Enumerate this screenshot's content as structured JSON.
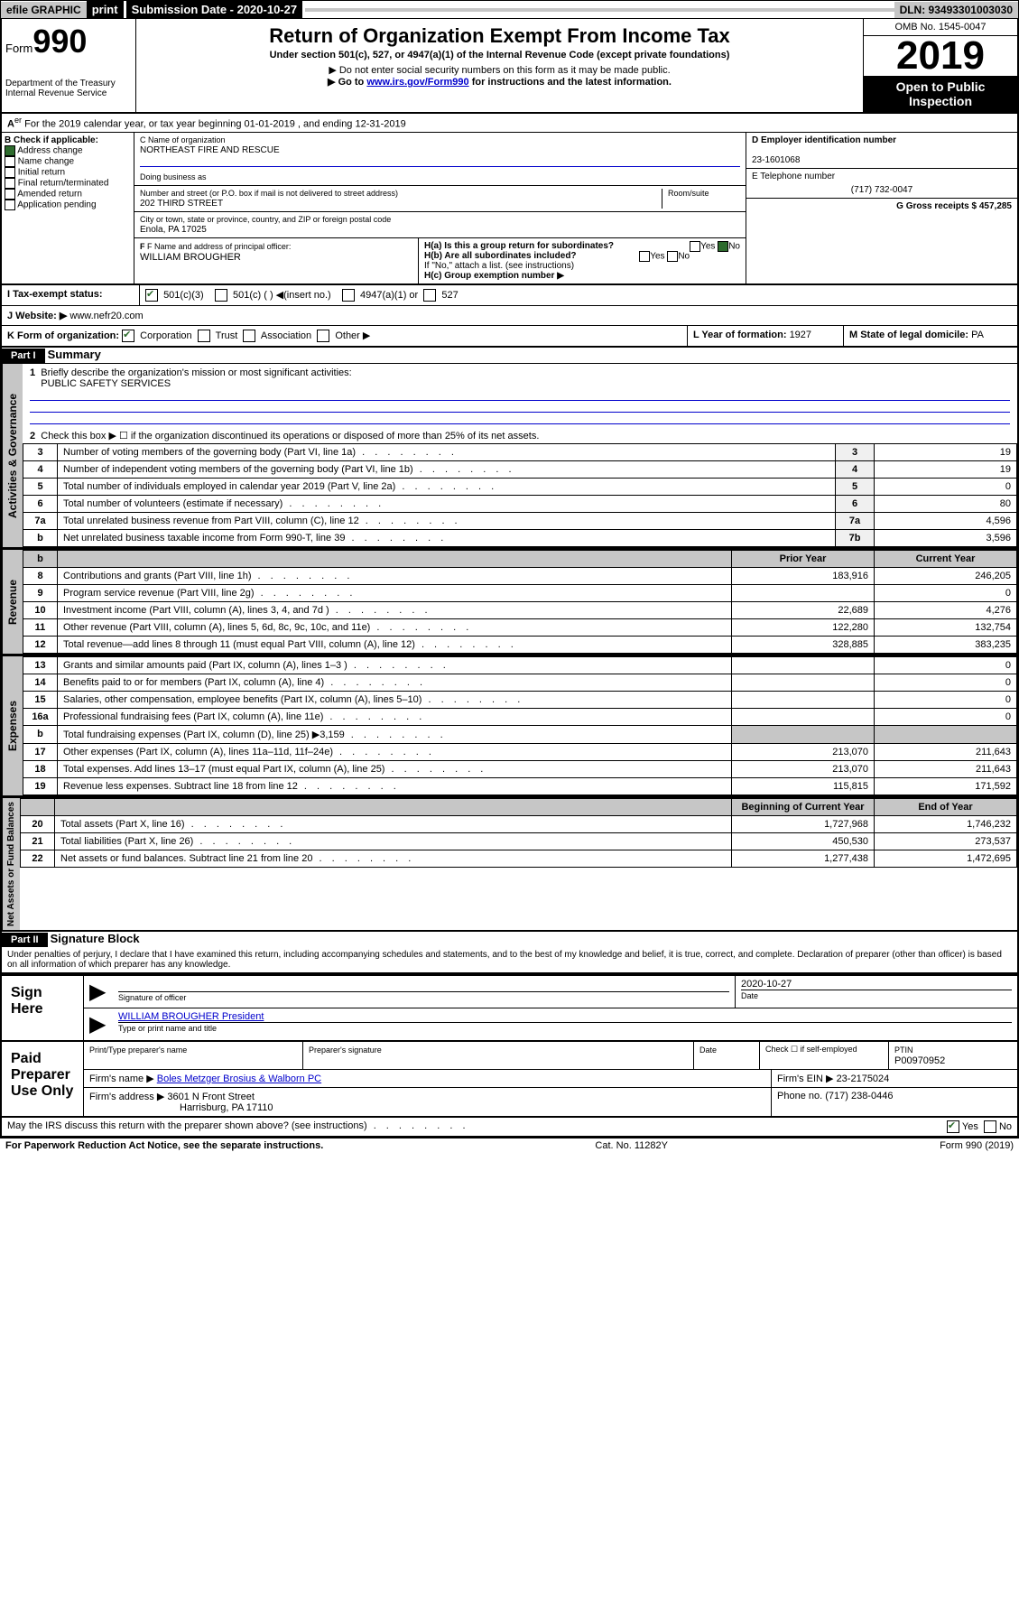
{
  "topbar": {
    "efile": "efile GRAPHIC",
    "print": "print",
    "submission": "Submission Date - 2020-10-27",
    "dln": "DLN: 93493301003030"
  },
  "header": {
    "form_prefix": "Form",
    "form_number": "990",
    "dept": "Department of the Treasury",
    "irs": "Internal Revenue Service",
    "title": "Return of Organization Exempt From Income Tax",
    "subtitle": "Under section 501(c), 527, or 4947(a)(1) of the Internal Revenue Code (except private foundations)",
    "note1": "▶ Do not enter social security numbers on this form as it may be made public.",
    "note2_pre": "▶ Go to ",
    "note2_link": "www.irs.gov/Form990",
    "note2_post": " for instructions and the latest information.",
    "omb": "OMB No. 1545-0047",
    "year": "2019",
    "open": "Open to Public Inspection"
  },
  "period": "For the 2019 calendar year, or tax year beginning 01-01-2019     , and ending 12-31-2019",
  "sectionB": {
    "label": "B Check if applicable:",
    "items": [
      "Address change",
      "Name change",
      "Initial return",
      "Final return/terminated",
      "Amended return",
      "Application pending"
    ]
  },
  "sectionC": {
    "name_label": "C Name of organization",
    "name": "NORTHEAST FIRE AND RESCUE",
    "dba_label": "Doing business as",
    "addr_label": "Number and street (or P.O. box if mail is not delivered to street address)",
    "room_label": "Room/suite",
    "addr": "202 THIRD STREET",
    "city_label": "City or town, state or province, country, and ZIP or foreign postal code",
    "city": "Enola, PA  17025",
    "officer_label": "F  Name and address of principal officer:",
    "officer": "WILLIAM BROUGHER"
  },
  "sectionD": {
    "label": "D Employer identification number",
    "ein": "23-1601068",
    "phone_label": "E Telephone number",
    "phone": "(717) 732-0047",
    "gross_label": "G Gross receipts $ 457,285"
  },
  "sectionH": {
    "a": "H(a)  Is this a group return for subordinates?",
    "b": "H(b)  Are all subordinates included?",
    "b_note": "If \"No,\" attach a list. (see instructions)",
    "c": "H(c)  Group exemption number ▶"
  },
  "rowI": {
    "label": "I     Tax-exempt status:",
    "opts": [
      "501(c)(3)",
      "501(c) (  ) ◀(insert no.)",
      "4947(a)(1) or",
      "527"
    ]
  },
  "rowJ": {
    "label": "J     Website: ▶",
    "url": "www.nefr20.com"
  },
  "rowK": {
    "label": "K Form of organization:",
    "opts": [
      "Corporation",
      "Trust",
      "Association",
      "Other ▶"
    ],
    "l_label": "L Year of formation: ",
    "l_val": "1927",
    "m_label": "M State of legal domicile: ",
    "m_val": "PA"
  },
  "part1": {
    "header": "Part I",
    "title": "Summary",
    "q1": "Briefly describe the organization's mission or most significant activities:",
    "q1_ans": "PUBLIC SAFETY SERVICES",
    "q2": "Check this box ▶ ☐  if the organization discontinued its operations or disposed of more than 25% of its net assets.",
    "rows_simple": [
      {
        "n": "3",
        "label": "Number of voting members of the governing body (Part VI, line 1a)",
        "box": "3",
        "val": "19"
      },
      {
        "n": "4",
        "label": "Number of independent voting members of the governing body (Part VI, line 1b)",
        "box": "4",
        "val": "19"
      },
      {
        "n": "5",
        "label": "Total number of individuals employed in calendar year 2019 (Part V, line 2a)",
        "box": "5",
        "val": "0"
      },
      {
        "n": "6",
        "label": "Total number of volunteers (estimate if necessary)",
        "box": "6",
        "val": "80"
      },
      {
        "n": "7a",
        "label": "Total unrelated business revenue from Part VIII, column (C), line 12",
        "box": "7a",
        "val": "4,596"
      },
      {
        "n": "b",
        "label": "Net unrelated business taxable income from Form 990-T, line 39",
        "box": "7b",
        "val": "3,596"
      }
    ],
    "prior_hdr": "Prior Year",
    "current_hdr": "Current Year",
    "beg_hdr": "Beginning of Current Year",
    "end_hdr": "End of Year",
    "vert_labels": [
      "Activities & Governance",
      "Revenue",
      "Expenses",
      "Net Assets or Fund Balances"
    ],
    "rows_double": [
      {
        "n": "8",
        "label": "Contributions and grants (Part VIII, line 1h)",
        "prior": "183,916",
        "cur": "246,205"
      },
      {
        "n": "9",
        "label": "Program service revenue (Part VIII, line 2g)",
        "prior": "",
        "cur": "0"
      },
      {
        "n": "10",
        "label": "Investment income (Part VIII, column (A), lines 3, 4, and 7d )",
        "prior": "22,689",
        "cur": "4,276"
      },
      {
        "n": "11",
        "label": "Other revenue (Part VIII, column (A), lines 5, 6d, 8c, 9c, 10c, and 11e)",
        "prior": "122,280",
        "cur": "132,754"
      },
      {
        "n": "12",
        "label": "Total revenue—add lines 8 through 11 (must equal Part VIII, column (A), line 12)",
        "prior": "328,885",
        "cur": "383,235"
      }
    ],
    "rows_exp": [
      {
        "n": "13",
        "label": "Grants and similar amounts paid (Part IX, column (A), lines 1–3 )",
        "prior": "",
        "cur": "0"
      },
      {
        "n": "14",
        "label": "Benefits paid to or for members (Part IX, column (A), line 4)",
        "prior": "",
        "cur": "0"
      },
      {
        "n": "15",
        "label": "Salaries, other compensation, employee benefits (Part IX, column (A), lines 5–10)",
        "prior": "",
        "cur": "0"
      },
      {
        "n": "16a",
        "label": "Professional fundraising fees (Part IX, column (A), line 11e)",
        "prior": "",
        "cur": "0"
      },
      {
        "n": "b",
        "label": "Total fundraising expenses (Part IX, column (D), line 25) ▶3,159",
        "prior": "shade",
        "cur": "shade"
      },
      {
        "n": "17",
        "label": "Other expenses (Part IX, column (A), lines 11a–11d, 11f–24e)",
        "prior": "213,070",
        "cur": "211,643"
      },
      {
        "n": "18",
        "label": "Total expenses. Add lines 13–17 (must equal Part IX, column (A), line 25)",
        "prior": "213,070",
        "cur": "211,643"
      },
      {
        "n": "19",
        "label": "Revenue less expenses. Subtract line 18 from line 12",
        "prior": "115,815",
        "cur": "171,592"
      }
    ],
    "rows_net": [
      {
        "n": "20",
        "label": "Total assets (Part X, line 16)",
        "prior": "1,727,968",
        "cur": "1,746,232"
      },
      {
        "n": "21",
        "label": "Total liabilities (Part X, line 26)",
        "prior": "450,530",
        "cur": "273,537"
      },
      {
        "n": "22",
        "label": "Net assets or fund balances. Subtract line 21 from line 20",
        "prior": "1,277,438",
        "cur": "1,472,695"
      }
    ]
  },
  "part2": {
    "header": "Part II",
    "title": "Signature Block",
    "declaration": "Under penalties of perjury, I declare that I have examined this return, including accompanying schedules and statements, and to the best of my knowledge and belief, it is true, correct, and complete. Declaration of preparer (other than officer) is based on all information of which preparer has any knowledge.",
    "sign_here": "Sign Here",
    "sig_officer": "Signature of officer",
    "sig_date": "2020-10-27",
    "date_label": "Date",
    "officer_name": "WILLIAM BROUGHER  President",
    "type_name": "Type or print name and title",
    "paid_prep": "Paid Preparer Use Only",
    "prep_name_label": "Print/Type preparer's name",
    "prep_sig_label": "Preparer's signature",
    "check_self": "Check ☐ if self-employed",
    "ptin_label": "PTIN",
    "ptin": "P00970952",
    "firm_name_label": "Firm's name    ▶",
    "firm_name": "Boles Metzger Brosius & Walborn PC",
    "firm_ein_label": "Firm's EIN ▶",
    "firm_ein": "23-2175024",
    "firm_addr_label": "Firm's address ▶",
    "firm_addr1": "3601 N Front Street",
    "firm_addr2": "Harrisburg, PA  17110",
    "phone_label": "Phone no.",
    "phone": "(717) 238-0446",
    "discuss": "May the IRS discuss this return with the preparer shown above? (see instructions)"
  },
  "footer": {
    "paperwork": "For Paperwork Reduction Act Notice, see the separate instructions.",
    "cat": "Cat. No. 11282Y",
    "form": "Form 990 (2019)"
  }
}
